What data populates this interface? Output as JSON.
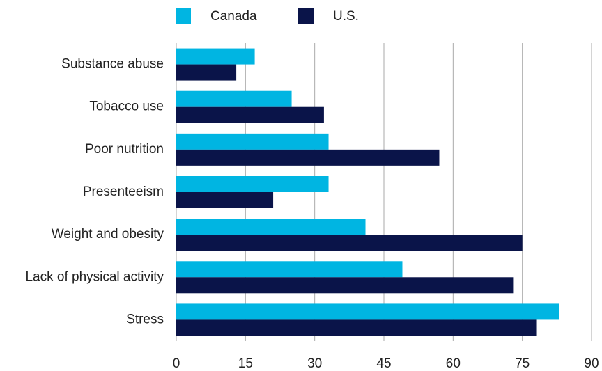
{
  "chart_data": {
    "type": "barh",
    "categories": [
      "Substance abuse",
      "Tobacco use",
      "Poor nutrition",
      "Presenteeism",
      "Weight and obesity",
      "Lack of physical activity",
      "Stress"
    ],
    "series": [
      {
        "name": "Canada",
        "color": "#00b5e2",
        "values": [
          17,
          25,
          33,
          33,
          41,
          49,
          83
        ]
      },
      {
        "name": "U.S.",
        "color": "#0a1449",
        "values": [
          13,
          32,
          57,
          21,
          75,
          73,
          78
        ]
      }
    ],
    "xlim": [
      0,
      90
    ],
    "xticks": [
      0,
      15,
      30,
      45,
      60,
      75,
      90
    ],
    "grid": true
  }
}
